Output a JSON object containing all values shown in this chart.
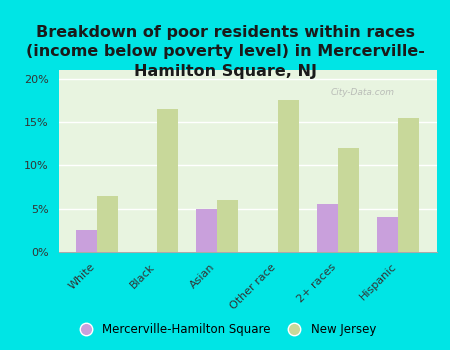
{
  "title": "Breakdown of poor residents within races\n(income below poverty level) in Mercerville-\nHamilton Square, NJ",
  "categories": [
    "White",
    "Black",
    "Asian",
    "Other race",
    "2+ races",
    "Hispanic"
  ],
  "mercerville_values": [
    2.5,
    0.0,
    5.0,
    0.0,
    5.5,
    4.0
  ],
  "nj_values": [
    6.5,
    16.5,
    6.0,
    17.5,
    12.0,
    15.5
  ],
  "mercerville_color": "#c9a0dc",
  "nj_color": "#c8d89a",
  "background_outer": "#00e5e5",
  "background_plot": "#e8f4e0",
  "ylim": [
    0,
    21
  ],
  "yticks": [
    0,
    5,
    10,
    15,
    20
  ],
  "ytick_labels": [
    "0%",
    "5%",
    "10%",
    "15%",
    "20%"
  ],
  "watermark": "City-Data.com",
  "legend_mercerville": "Mercerville-Hamilton Square",
  "legend_nj": "New Jersey",
  "title_fontsize": 11.5,
  "tick_fontsize": 8.0,
  "bar_width": 0.35
}
